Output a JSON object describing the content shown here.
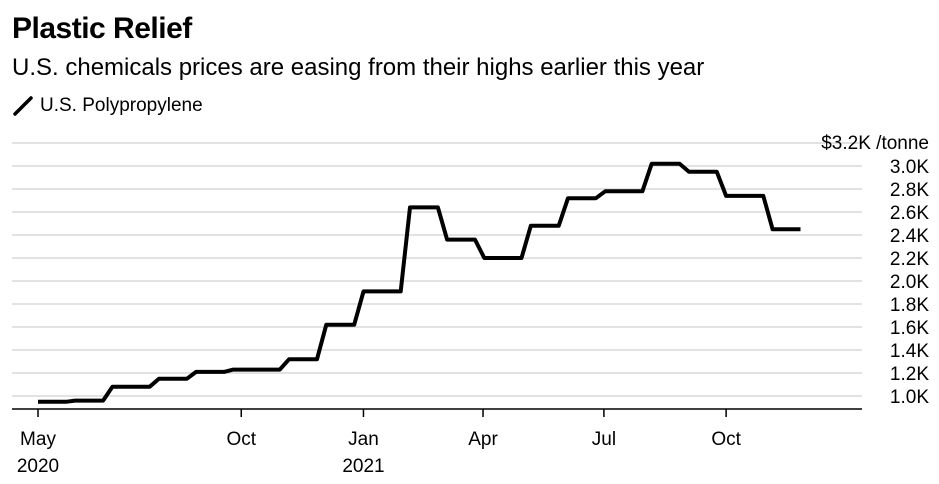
{
  "title": "Plastic Relief",
  "subtitle": "U.S. chemicals prices are easing from their highs earlier this year",
  "colors": {
    "line": "#000000",
    "grid": "#d9d9d9",
    "axis": "#000000"
  },
  "chart_data": {
    "type": "line",
    "unit_label": "$3.2K /tonne",
    "ylim": [
      900,
      3200
    ],
    "xlim": [
      "2020-05-01",
      "2021-12-31"
    ],
    "grid": true,
    "legend_position": "top-left",
    "y_ticks": [
      {
        "value": 3000,
        "label": "3.0K"
      },
      {
        "value": 2800,
        "label": "2.8K"
      },
      {
        "value": 2600,
        "label": "2.6K"
      },
      {
        "value": 2400,
        "label": "2.4K"
      },
      {
        "value": 2200,
        "label": "2.2K"
      },
      {
        "value": 2000,
        "label": "2.0K"
      },
      {
        "value": 1800,
        "label": "1.8K"
      },
      {
        "value": 1600,
        "label": "1.6K"
      },
      {
        "value": 1400,
        "label": "1.4K"
      },
      {
        "value": 1200,
        "label": "1.2K"
      },
      {
        "value": 1000,
        "label": "1.0K"
      }
    ],
    "x_ticks": [
      {
        "date": "2020-05-01",
        "label": "May",
        "year": "2020"
      },
      {
        "date": "2020-10-01",
        "label": "Oct",
        "year": ""
      },
      {
        "date": "2021-01-01",
        "label": "Jan",
        "year": "2021"
      },
      {
        "date": "2021-04-01",
        "label": "Apr",
        "year": ""
      },
      {
        "date": "2021-07-01",
        "label": "Jul",
        "year": ""
      },
      {
        "date": "2021-10-01",
        "label": "Oct",
        "year": ""
      }
    ],
    "series": [
      {
        "name": "U.S. Polypropylene",
        "points": [
          [
            "2020-05-01",
            950
          ],
          [
            "2020-05-22",
            950
          ],
          [
            "2020-05-29",
            960
          ],
          [
            "2020-06-19",
            960
          ],
          [
            "2020-06-26",
            1080
          ],
          [
            "2020-07-24",
            1080
          ],
          [
            "2020-07-31",
            1150
          ],
          [
            "2020-08-21",
            1150
          ],
          [
            "2020-08-28",
            1210
          ],
          [
            "2020-09-18",
            1210
          ],
          [
            "2020-09-25",
            1230
          ],
          [
            "2020-10-30",
            1230
          ],
          [
            "2020-11-06",
            1320
          ],
          [
            "2020-11-27",
            1320
          ],
          [
            "2020-12-04",
            1620
          ],
          [
            "2020-12-25",
            1620
          ],
          [
            "2021-01-01",
            1910
          ],
          [
            "2021-01-29",
            1910
          ],
          [
            "2021-02-05",
            2640
          ],
          [
            "2021-02-26",
            2640
          ],
          [
            "2021-03-05",
            2360
          ],
          [
            "2021-03-26",
            2360
          ],
          [
            "2021-04-02",
            2200
          ],
          [
            "2021-04-30",
            2200
          ],
          [
            "2021-05-07",
            2480
          ],
          [
            "2021-05-28",
            2480
          ],
          [
            "2021-06-04",
            2720
          ],
          [
            "2021-06-25",
            2720
          ],
          [
            "2021-07-02",
            2780
          ],
          [
            "2021-07-30",
            2780
          ],
          [
            "2021-08-06",
            3020
          ],
          [
            "2021-08-27",
            3020
          ],
          [
            "2021-09-03",
            2950
          ],
          [
            "2021-09-24",
            2950
          ],
          [
            "2021-10-01",
            2740
          ],
          [
            "2021-10-29",
            2740
          ],
          [
            "2021-11-05",
            2450
          ],
          [
            "2021-11-26",
            2450
          ]
        ]
      }
    ]
  }
}
